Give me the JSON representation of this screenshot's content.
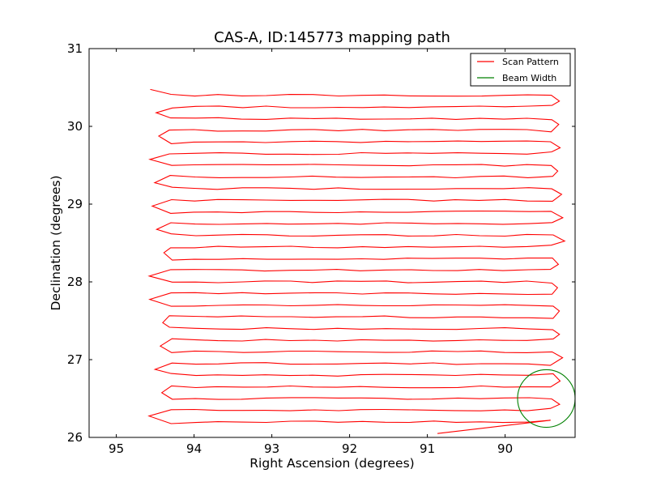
{
  "chart_data": {
    "type": "line",
    "title": "CAS-A, ID:145773 mapping path",
    "xlabel": "Right Ascension (degrees)",
    "ylabel": "Declination (degrees)",
    "xlim": [
      95.35,
      89.1
    ],
    "ylim": [
      26,
      31
    ],
    "x_ticks": [
      95,
      94,
      93,
      92,
      91,
      90
    ],
    "x_tick_labels": [
      "95",
      "94",
      "93",
      "92",
      "91",
      "90"
    ],
    "y_ticks": [
      26,
      27,
      28,
      29,
      30,
      31
    ],
    "y_tick_labels": [
      "26",
      "27",
      "28",
      "29",
      "30",
      "31"
    ],
    "grid": false,
    "legend_position": "top-right",
    "series": [
      {
        "name": "Scan Pattern",
        "color": "#ff0000",
        "start": [
          90.87,
          26.05
        ],
        "x_range": [
          94.3,
          89.4
        ],
        "y_start": 26.2,
        "y_step": 0.15,
        "rows": 29
      },
      {
        "name": "Beam Width",
        "color": "#008000",
        "center": [
          89.47,
          26.5
        ],
        "radius_deg": 0.37
      }
    ]
  }
}
